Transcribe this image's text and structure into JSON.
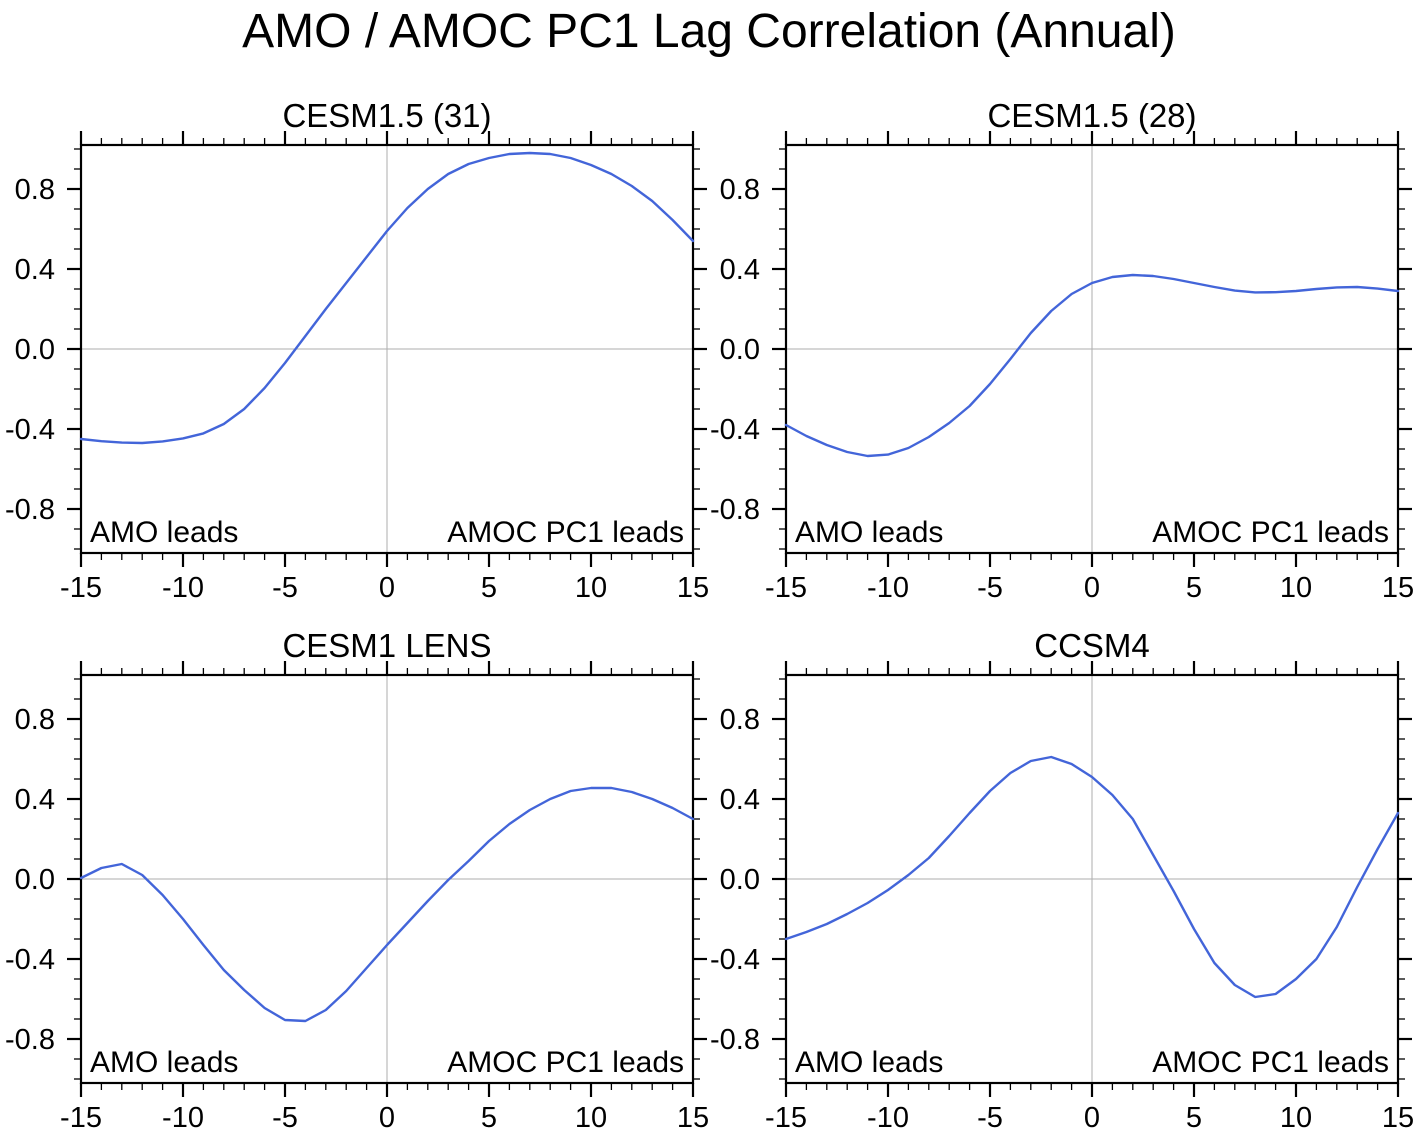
{
  "header": {
    "title": "AMO / AMOC PC1 Lag Correlation (Annual)"
  },
  "axes": {
    "xlim": [
      -15,
      15
    ],
    "ylim": [
      -1.02,
      1.02
    ],
    "x_major_ticks": [
      -15,
      -10,
      -5,
      0,
      5,
      10,
      15
    ],
    "x_tick_labels": [
      "-15",
      "-10",
      "-5",
      "0",
      "5",
      "10",
      "15"
    ],
    "x_minor_step": 1,
    "y_major_ticks": [
      -0.8,
      -0.4,
      0.0,
      0.4,
      0.8
    ],
    "y_tick_labels": [
      "-0.8",
      "-0.4",
      "0.0",
      "0.4",
      "0.8"
    ],
    "y_minor_step": 0.1,
    "grid": "zero lines only",
    "legend": "none",
    "lead_left": "AMO leads",
    "lead_right": "AMOC PC1 leads"
  },
  "colors": {
    "line": "#4365d9",
    "zero_grid": "#adadad",
    "axis": "#000000",
    "background": "#ffffff"
  },
  "chart_data": [
    {
      "type": "line",
      "title": "CESM1.5 (31)",
      "xlabel": "",
      "ylabel": "",
      "xlim": [
        -15,
        15
      ],
      "ylim": [
        -1.02,
        1.02
      ],
      "annotations": [
        "AMO leads",
        "AMOC PC1 leads"
      ],
      "x": [
        -15,
        -14,
        -13,
        -12,
        -11,
        -10,
        -9,
        -8,
        -7,
        -6,
        -5,
        -4,
        -3,
        -2,
        -1,
        0,
        1,
        2,
        3,
        4,
        5,
        6,
        7,
        8,
        9,
        10,
        11,
        12,
        13,
        14,
        15
      ],
      "y": [
        -0.45,
        -0.461,
        -0.468,
        -0.47,
        -0.462,
        -0.447,
        -0.422,
        -0.375,
        -0.3,
        -0.195,
        -0.07,
        0.065,
        0.2,
        0.33,
        0.46,
        0.59,
        0.705,
        0.8,
        0.875,
        0.925,
        0.955,
        0.975,
        0.98,
        0.975,
        0.955,
        0.92,
        0.875,
        0.815,
        0.74,
        0.645,
        0.54
      ]
    },
    {
      "type": "line",
      "title": "CESM1.5 (28)",
      "xlabel": "",
      "ylabel": "",
      "xlim": [
        -15,
        15
      ],
      "ylim": [
        -1.02,
        1.02
      ],
      "annotations": [
        "AMO leads",
        "AMOC PC1 leads"
      ],
      "x": [
        -15,
        -14,
        -13,
        -12,
        -11,
        -10,
        -9,
        -8,
        -7,
        -6,
        -5,
        -4,
        -3,
        -2,
        -1,
        0,
        1,
        2,
        3,
        4,
        5,
        6,
        7,
        8,
        9,
        10,
        11,
        12,
        13,
        14,
        15
      ],
      "y": [
        -0.38,
        -0.435,
        -0.48,
        -0.515,
        -0.535,
        -0.528,
        -0.495,
        -0.44,
        -0.37,
        -0.285,
        -0.175,
        -0.05,
        0.08,
        0.19,
        0.275,
        0.33,
        0.36,
        0.37,
        0.365,
        0.35,
        0.33,
        0.31,
        0.292,
        0.283,
        0.284,
        0.29,
        0.3,
        0.308,
        0.31,
        0.302,
        0.29
      ]
    },
    {
      "type": "line",
      "title": "CESM1 LENS",
      "xlabel": "",
      "ylabel": "",
      "xlim": [
        -15,
        15
      ],
      "ylim": [
        -1.02,
        1.02
      ],
      "annotations": [
        "AMO leads",
        "AMOC PC1 leads"
      ],
      "x": [
        -15,
        -14,
        -13,
        -12,
        -11,
        -10,
        -9,
        -8,
        -7,
        -6,
        -5,
        -4,
        -3,
        -2,
        -1,
        0,
        1,
        2,
        3,
        4,
        5,
        6,
        7,
        8,
        9,
        10,
        11,
        12,
        13,
        14,
        15
      ],
      "y": [
        0.005,
        0.055,
        0.075,
        0.02,
        -0.08,
        -0.2,
        -0.33,
        -0.455,
        -0.555,
        -0.645,
        -0.705,
        -0.71,
        -0.655,
        -0.56,
        -0.445,
        -0.33,
        -0.22,
        -0.11,
        -0.005,
        0.09,
        0.19,
        0.275,
        0.345,
        0.4,
        0.44,
        0.455,
        0.455,
        0.435,
        0.4,
        0.355,
        0.3
      ]
    },
    {
      "type": "line",
      "title": "CCSM4",
      "xlabel": "",
      "ylabel": "",
      "xlim": [
        -15,
        15
      ],
      "ylim": [
        -1.02,
        1.02
      ],
      "annotations": [
        "AMO leads",
        "AMOC PC1 leads"
      ],
      "x": [
        -15,
        -14,
        -13,
        -12,
        -11,
        -10,
        -9,
        -8,
        -7,
        -6,
        -5,
        -4,
        -3,
        -2,
        -1,
        0,
        1,
        2,
        3,
        4,
        5,
        6,
        7,
        8,
        9,
        10,
        11,
        12,
        13,
        14,
        15
      ],
      "y": [
        -0.3,
        -0.265,
        -0.225,
        -0.175,
        -0.12,
        -0.055,
        0.02,
        0.105,
        0.215,
        0.33,
        0.44,
        0.53,
        0.59,
        0.61,
        0.575,
        0.51,
        0.42,
        0.3,
        0.12,
        -0.06,
        -0.25,
        -0.42,
        -0.53,
        -0.59,
        -0.575,
        -0.5,
        -0.4,
        -0.24,
        -0.04,
        0.15,
        0.33
      ]
    }
  ]
}
